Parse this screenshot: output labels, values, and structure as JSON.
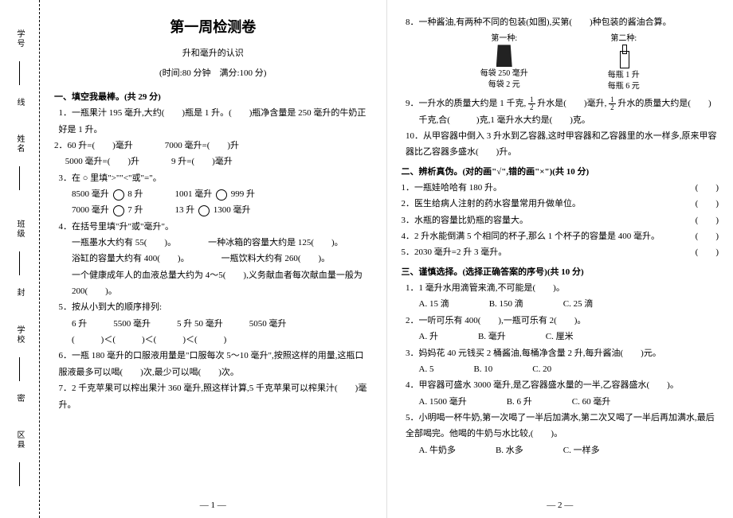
{
  "sidebar": {
    "items": [
      {
        "label": "学号",
        "mark": "线"
      },
      {
        "label": "姓名",
        "mark": ""
      },
      {
        "label": "班级",
        "mark": "封"
      },
      {
        "label": "学校",
        "mark": "密"
      },
      {
        "label": "区县",
        "mark": ""
      }
    ]
  },
  "header": {
    "title": "第一周检测卷",
    "subtitle": "升和毫升的认识",
    "meta": "(时间:80 分钟　满分:100 分)"
  },
  "s1": {
    "head": "一、填空我最棒。(共 29 分)",
    "q1": "1．一瓶果汁 195 毫升,大约(　　)瓶是 1 升。(　　)瓶净含量是 250 毫升的牛奶正好是 1 升。",
    "q2a": "2．60 升=(　　)毫升",
    "q2b": "7000 毫升=(　　)升",
    "q2c": "　 5000 毫升=(　　)升",
    "q2d": "9 升=(　　)毫升",
    "q3": "3．在 ○ 里填\">\"\"<\"或\"=\"。",
    "q3a1": "8500 毫升",
    "q3a2": "8 升",
    "q3b1": "1001 毫升",
    "q3b2": "999 升",
    "q3c1": "7000 毫升",
    "q3c2": "7 升",
    "q3d1": "13 升",
    "q3d2": "1300 毫升",
    "q4": "4．在括号里填\"升\"或\"毫升\"。",
    "q4a": "一瓶墨水大约有 55(　　)。",
    "q4b": "一种冰箱的容量大约是 125(　　)。",
    "q4c": "浴缸的容量大约有 400(　　)。",
    "q4d": "一瓶饮料大约有 260(　　)。",
    "q4e": "一个健康成年人的血液总量大约为 4～5(　　),义务献血者每次献血量一般为 200(　　)。",
    "q5": "5．按从小到大的顺序排列:",
    "q5a": "6 升　　　5500 毫升　　　5 升 50 毫升　　　5050 毫升",
    "q5b": "(　　　)＜(　　　)＜(　　　)＜(　　　)",
    "q6": "6．一瓶 180 毫升的口服液用量是\"口服每次 5～10 毫升\",按照这样的用量,这瓶口服液最多可以喝(　　)次,最少可以喝(　　)次。",
    "q7": "7．2 千克苹果可以榨出果汁 360 毫升,照这样计算,5 千克苹果可以榨果汁(　　)毫升。"
  },
  "p2": {
    "q8": "8．一种酱油,有两种不同的包装(如图),买第(　　)种包装的酱油合算。",
    "prod1_label": "第一种:",
    "prod1_a": "每袋 250 毫升",
    "prod1_b": "每袋 2 元",
    "prod2_label": "第二种:",
    "prod2_a": "每瓶 1 升",
    "prod2_b": "每瓶 6 元",
    "q9a": "9．一升水的质量大约是 1 千克,",
    "q9b": "升水是(　　)毫升,",
    "q9c": "升水的质量大约是(　　)",
    "q9d": "千克,合(　　　)克,1 毫升水大约是(　　)克。",
    "q10": "10．从甲容器中倒入 3 升水到乙容器,这时甲容器和乙容器里的水一样多,原来甲容器比乙容器多盛水(　　)升。"
  },
  "s2": {
    "head": "二、辨析真伪。(对的画\"√\",错的画\"×\")(共 10 分)",
    "q1": "1．一瓶娃哈哈有 180 升。",
    "q2": "2．医生给病人注射的药水容量常用升做单位。",
    "q3": "3．水瓶的容量比奶瓶的容量大。",
    "q4": "4．2 升水能倒满 5 个相同的杯子,那么 1 个杯子的容量是 400 毫升。",
    "q5": "5．2030 毫升=2 升 3 毫升。"
  },
  "s3": {
    "head": "三、谨慎选择。(选择正确答案的序号)(共 10 分)",
    "q1": "1．1 毫升水用滴管来滴,不可能是(　　)。",
    "q1a": "A. 15 滴",
    "q1b": "B. 150 滴",
    "q1c": "C. 25 滴",
    "q2": "2．一听可乐有 400(　　),一瓶可乐有 2(　　)。",
    "q2a": "A. 升",
    "q2b": "B. 毫升",
    "q2c": "C. 厘米",
    "q3": "3．妈妈花 40 元钱买 2 桶酱油,每桶净含量 2 升,每升酱油(　　)元。",
    "q3a": "A. 5",
    "q3b": "B. 10",
    "q3c": "C. 20",
    "q4": "4．甲容器可盛水 3000 毫升,是乙容器盛水量的一半,乙容器盛水(　　)。",
    "q4a": "A. 1500 毫升",
    "q4b": "B. 6 升",
    "q4c": "C. 60 毫升",
    "q5": "5．小明喝一杯牛奶,第一次喝了一半后加满水,第二次又喝了一半后再加满水,最后全部喝完。他喝的牛奶与水比较,(　　)。",
    "q5a": "A. 牛奶多",
    "q5b": "B. 水多",
    "q5c": "C. 一样多"
  },
  "pagenum": {
    "p1": "— 1 —",
    "p2": "— 2 —"
  }
}
